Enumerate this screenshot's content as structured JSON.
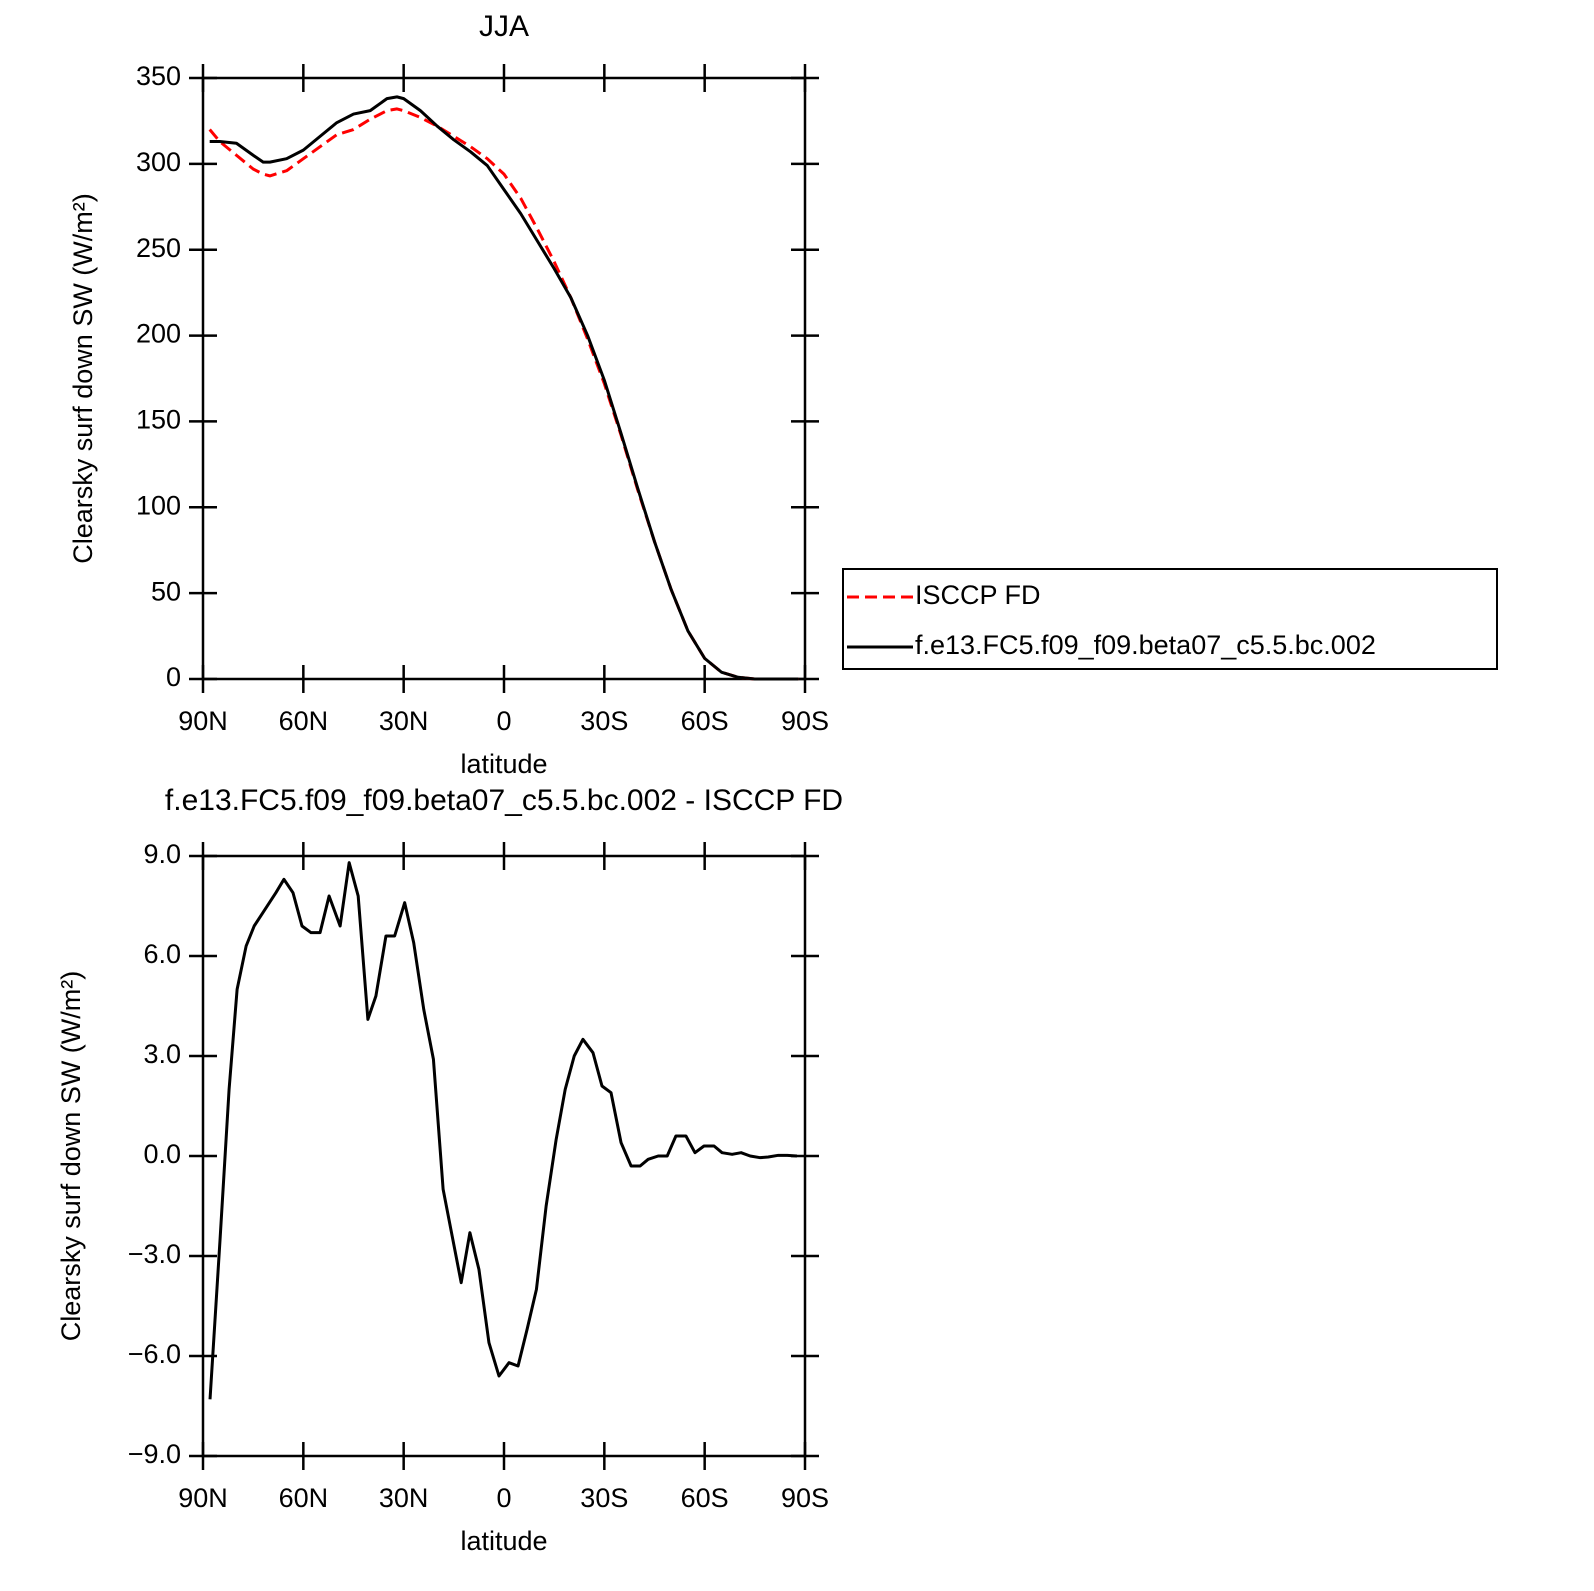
{
  "chart_data": [
    {
      "type": "line",
      "title": "JJA",
      "xlabel": "latitude",
      "ylabel": "Clearsky surf down SW (W/m²)",
      "x": [
        88,
        85,
        80,
        75,
        72,
        70,
        65,
        60,
        55,
        50,
        45,
        40,
        35,
        32,
        30,
        25,
        20,
        15,
        10,
        5,
        0,
        -5,
        -10,
        -15,
        -20,
        -25,
        -30,
        -35,
        -40,
        -45,
        -50,
        -55,
        -60,
        -65,
        -70,
        -75,
        -80,
        -88
      ],
      "series": [
        {
          "name": "ISCCP FD",
          "color": "#ff0000",
          "dashed": true,
          "values": [
            320,
            313,
            305,
            297,
            294,
            293,
            296,
            303,
            310,
            317,
            320,
            326,
            331,
            332,
            331,
            327,
            322,
            316,
            310,
            303,
            294,
            280,
            262,
            243,
            222,
            198,
            172,
            142,
            110,
            80,
            52,
            28,
            12,
            4,
            1,
            0,
            0,
            0
          ]
        },
        {
          "name": "f.e13.FC5.f09_f09.beta07_c5.5.bc.002",
          "color": "#000000",
          "dashed": false,
          "values": [
            313,
            313,
            312,
            305,
            301,
            301,
            303,
            308,
            316,
            324,
            329,
            331,
            338,
            339,
            338,
            331,
            322,
            314,
            307,
            299,
            285,
            271,
            255,
            239,
            222,
            200,
            174,
            143,
            111,
            80,
            52,
            28,
            12,
            4,
            1,
            0,
            0,
            0
          ]
        }
      ],
      "xlim": [
        90,
        -90
      ],
      "xticks": [
        {
          "value": 90,
          "label": "90N"
        },
        {
          "value": 60,
          "label": "60N"
        },
        {
          "value": 30,
          "label": "30N"
        },
        0,
        {
          "value": -30,
          "label": "30S"
        },
        {
          "value": -60,
          "label": "60S"
        },
        {
          "value": -90,
          "label": "90S"
        }
      ],
      "ylim": [
        0,
        350
      ],
      "yticks": [
        0,
        50,
        100,
        150,
        200,
        250,
        300,
        350
      ],
      "legend": "right"
    },
    {
      "type": "line",
      "title": "f.e13.FC5.f09_f09.beta07_c5.5.bc.002 - ISCCP FD",
      "xlabel": "latitude",
      "ylabel": "Clearsky surf down SW (W/m²)",
      "x": [
        87.9,
        84.9,
        82.2,
        79.8,
        77.1,
        74.7,
        72.1,
        68.2,
        65.8,
        63.1,
        60.4,
        57.7,
        55.0,
        52.3,
        49.0,
        46.3,
        43.6,
        40.7,
        38.3,
        35.3,
        32.7,
        29.7,
        27.0,
        24.0,
        21.1,
        18.2,
        15.5,
        12.8,
        10.2,
        7.5,
        4.5,
        1.5,
        -1.5,
        -4.2,
        -6.9,
        -9.7,
        -12.6,
        -15.6,
        -18.3,
        -21.0,
        -23.6,
        -26.6,
        -29.3,
        -32.0,
        -35.0,
        -38.0,
        -40.7,
        -43.1,
        -46.1,
        -48.8,
        -51.4,
        -54.4,
        -57.1,
        -59.8,
        -62.8,
        -65.2,
        -68.2,
        -70.9,
        -73.6,
        -76.6,
        -79.0,
        -82.0,
        -84.7,
        -87.6
      ],
      "series": [
        {
          "color": "#000000",
          "dashed": false,
          "values": [
            -7.3,
            -2.5,
            2.0,
            5.0,
            6.3,
            6.9,
            7.3,
            7.9,
            8.3,
            7.9,
            6.9,
            6.7,
            6.7,
            7.8,
            6.9,
            8.8,
            7.8,
            4.1,
            4.8,
            6.6,
            6.6,
            7.6,
            6.4,
            4.4,
            2.9,
            -1.0,
            -2.4,
            -3.8,
            -2.3,
            -3.4,
            -5.6,
            -6.6,
            -6.2,
            -6.3,
            -5.2,
            -4.0,
            -1.5,
            0.5,
            2.0,
            3.0,
            3.5,
            3.1,
            2.1,
            1.9,
            0.4,
            -0.3,
            -0.3,
            -0.1,
            0.0,
            0.0,
            0.6,
            0.6,
            0.1,
            0.3,
            0.3,
            0.1,
            0.05,
            0.1,
            0.0,
            -0.05,
            -0.03,
            0.02,
            0.02,
            0.0
          ]
        }
      ],
      "xlim": [
        90,
        -90
      ],
      "xticks": [
        {
          "value": 90,
          "label": "90N"
        },
        {
          "value": 60,
          "label": "60N"
        },
        {
          "value": 30,
          "label": "30N"
        },
        0,
        {
          "value": -30,
          "label": "30S"
        },
        {
          "value": -60,
          "label": "60S"
        },
        {
          "value": -90,
          "label": "90S"
        }
      ],
      "ylim": [
        -9,
        9
      ],
      "yticks": [
        {
          "value": -9,
          "label": "−9.0"
        },
        {
          "value": -6,
          "label": "−6.0"
        },
        {
          "value": -3,
          "label": "−3.0"
        },
        {
          "value": 0,
          "label": "0.0"
        },
        {
          "value": 3,
          "label": "3.0"
        },
        {
          "value": 6,
          "label": "6.0"
        },
        {
          "value": 9,
          "label": "9.0"
        }
      ]
    }
  ]
}
